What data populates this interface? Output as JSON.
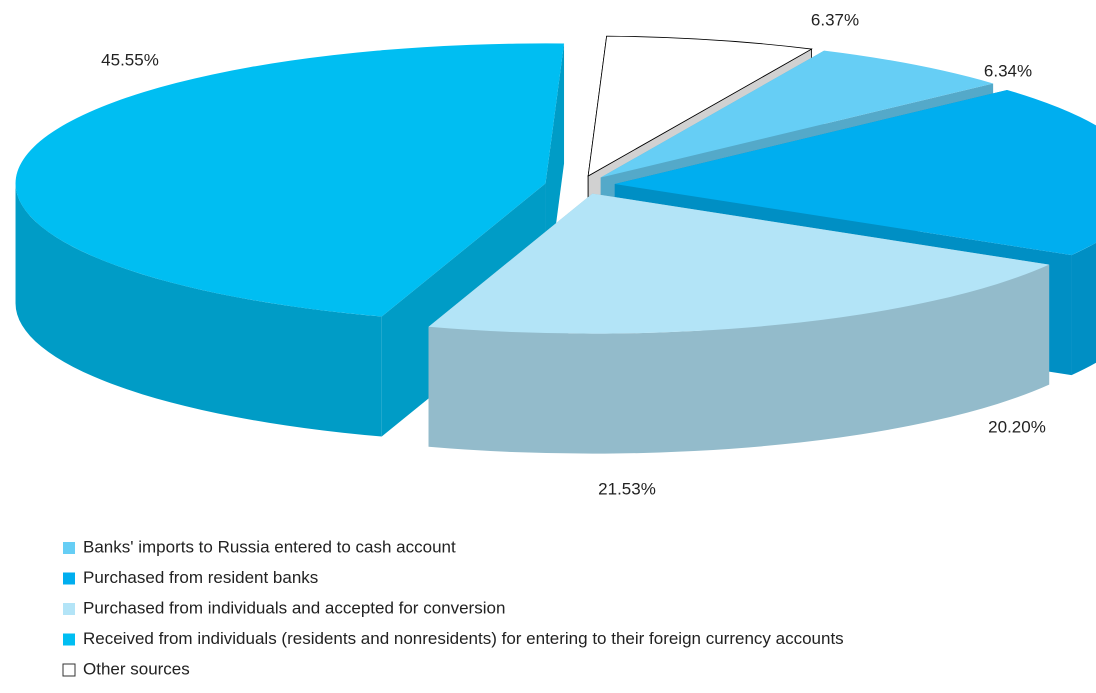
{
  "chart_data": {
    "type": "pie",
    "categories": [
      "Banks' imports  to Russia entered  to cash account",
      "Purchased from resident banks",
      "Purchased from individuals and accepted for conversion",
      "Received from individuals (residents and nonresidents) for entering to their foreign currency accounts",
      "Other sources"
    ],
    "values": [
      6.34,
      20.2,
      21.53,
      45.55,
      6.37
    ],
    "value_labels": [
      "6.34%",
      "20.20%",
      "21.53%",
      "45.55%",
      "6.37%"
    ],
    "colors": [
      "#66cef5",
      "#00aeef",
      "#b3e4f7",
      "#00bef2",
      "#ffffff"
    ],
    "legend": "bottom"
  }
}
